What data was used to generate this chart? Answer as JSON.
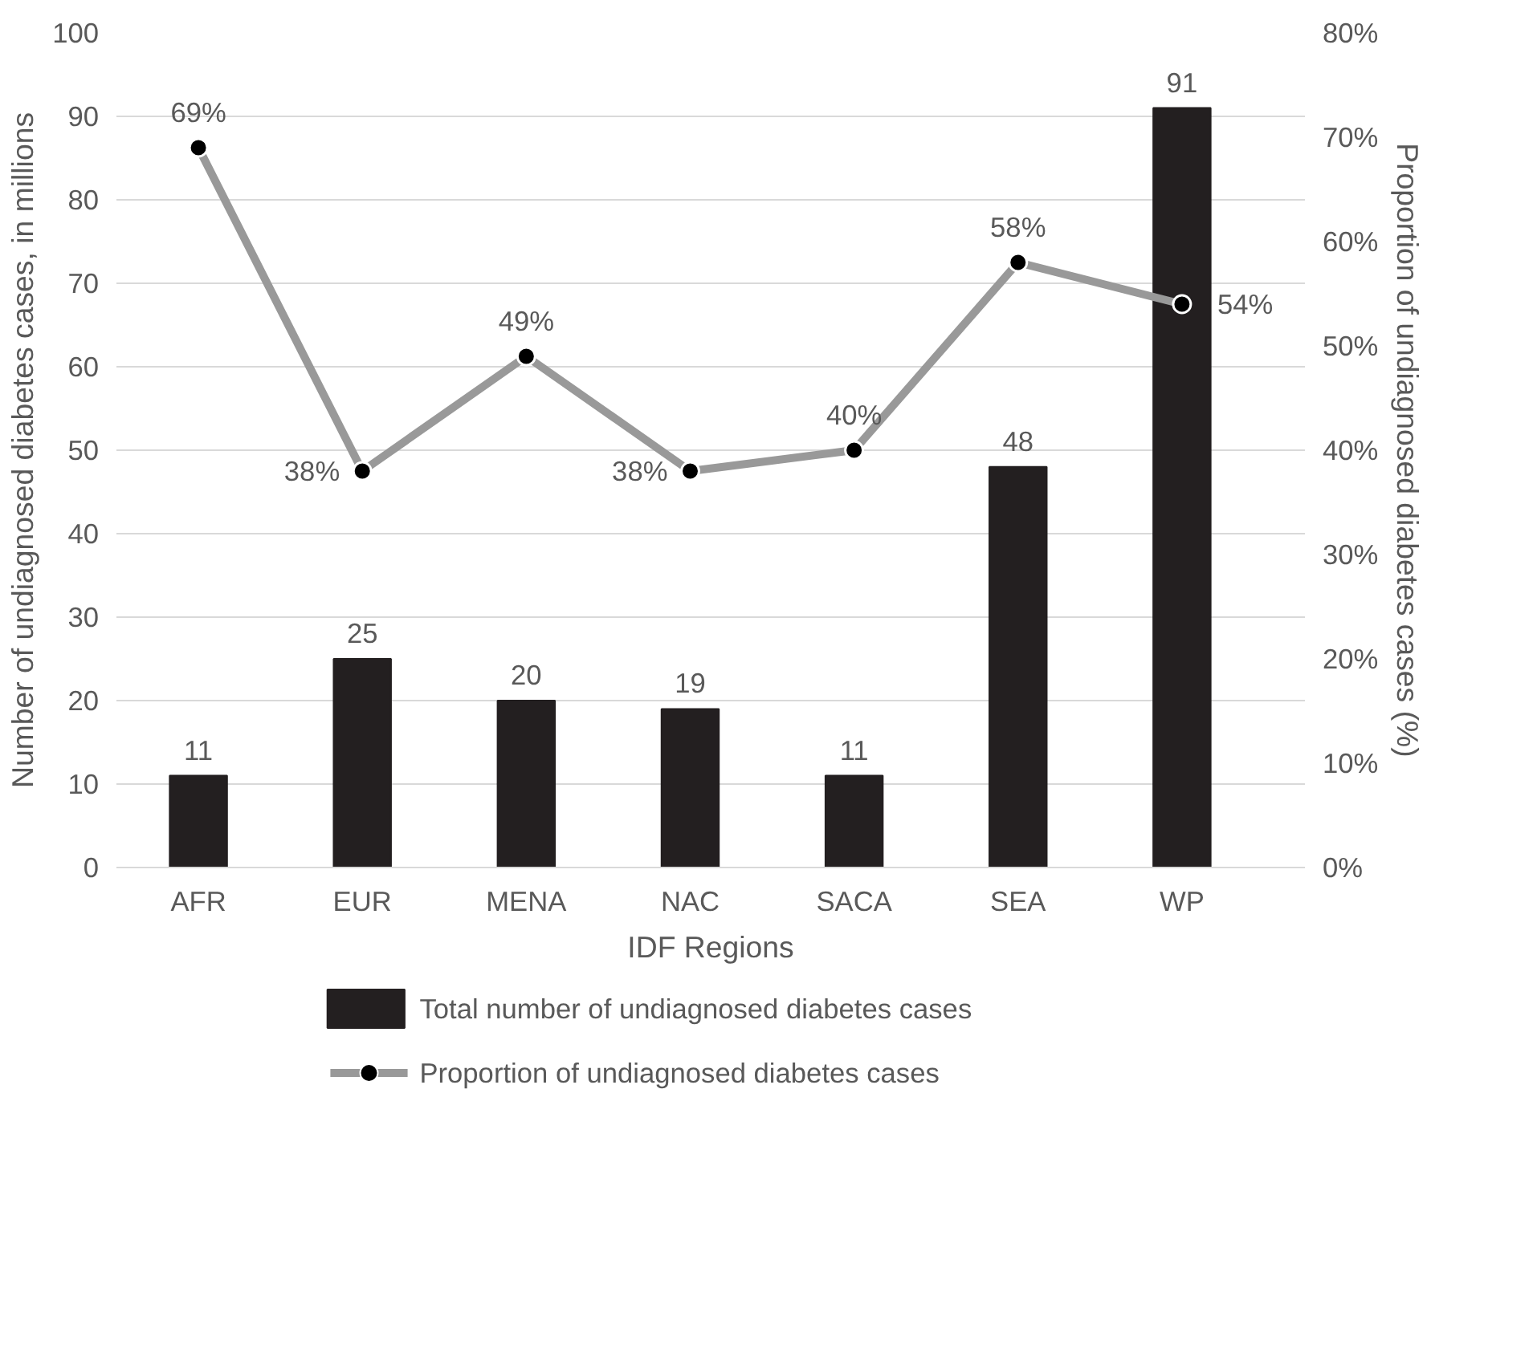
{
  "chart_data": {
    "type": "bar",
    "xlabel": "IDF Regions",
    "ylabel": "Number of undiagnosed diabetes cases, in millions",
    "y2label": "Proportion of undiagnosed diabetes cases (%)",
    "categories": [
      "AFR",
      "EUR",
      "MENA",
      "NAC",
      "SACA",
      "SEA",
      "WP"
    ],
    "series": [
      {
        "name": "Total number of undiagnosed diabetes cases",
        "color": "#231f20",
        "values": [
          11,
          25,
          20,
          19,
          11,
          48,
          91
        ],
        "value_labels": [
          "11",
          "25",
          "20",
          "19",
          "11",
          "48",
          "91"
        ]
      },
      {
        "name": "Proportion of undiagnosed diabetes cases",
        "type": "line",
        "axis": "y2",
        "color": "#999999",
        "marker": "circle",
        "values": [
          69,
          38,
          49,
          38,
          40,
          58,
          54
        ],
        "value_labels": [
          "69%",
          "38%",
          "49%",
          "38%",
          "40%",
          "58%",
          "54%"
        ]
      }
    ],
    "ylim": [
      0,
      100
    ],
    "yticks": [
      0,
      10,
      20,
      30,
      40,
      50,
      60,
      70,
      80,
      90,
      100
    ],
    "y2lim": [
      0,
      80
    ],
    "y2ticks": [
      {
        "value": 0,
        "label": "0%"
      },
      {
        "value": 10,
        "label": "10%"
      },
      {
        "value": 20,
        "label": "20%"
      },
      {
        "value": 30,
        "label": "30%"
      },
      {
        "value": 40,
        "label": "40%"
      },
      {
        "value": 50,
        "label": "50%"
      },
      {
        "value": 60,
        "label": "60%"
      },
      {
        "value": 70,
        "label": "70%"
      },
      {
        "value": 80,
        "label": "80%"
      }
    ],
    "grid": "y",
    "legend": "bottom"
  }
}
